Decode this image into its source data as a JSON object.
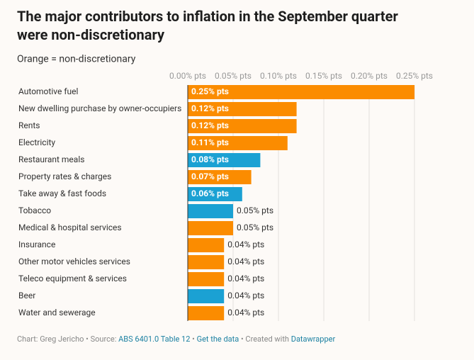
{
  "chart_data": {
    "type": "bar",
    "orientation": "horizontal",
    "title": "The major contributors to inflation in the September quarter were non-discretionary",
    "subtitle": "Orange = non-discretionary",
    "categories": [
      "Automotive fuel",
      "New dwelling purchase by owner-occupiers",
      "Rents",
      "Electricity",
      "Restaurant meals",
      "Property rates & charges",
      "Take away & fast foods",
      "Tobacco",
      "Medical & hospital services",
      "Insurance",
      "Other motor vehicles services",
      "Teleco equipment & services",
      "Beer",
      "Water and sewerage"
    ],
    "values": [
      0.25,
      0.12,
      0.12,
      0.11,
      0.08,
      0.07,
      0.06,
      0.05,
      0.05,
      0.04,
      0.04,
      0.04,
      0.04,
      0.04
    ],
    "value_labels": [
      "0.25% pts",
      "0.12% pts",
      "0.12% pts",
      "0.11% pts",
      "0.08% pts",
      "0.07% pts",
      "0.06% pts",
      "0.05% pts",
      "0.05% pts",
      "0.04% pts",
      "0.04% pts",
      "0.04% pts",
      "0.04% pts",
      "0.04% pts"
    ],
    "colors": [
      "#fb8c00",
      "#fb8c00",
      "#fb8c00",
      "#fb8c00",
      "#1ba1d3",
      "#fb8c00",
      "#1ba1d3",
      "#1ba1d3",
      "#fb8c00",
      "#fb8c00",
      "#fb8c00",
      "#fb8c00",
      "#1ba1d3",
      "#fb8c00"
    ],
    "xlim": [
      0,
      0.25
    ],
    "xticks": [
      {
        "value": 0,
        "label": "0.00% pts"
      },
      {
        "value": 0.05,
        "label": "0.05% pts"
      },
      {
        "value": 0.1,
        "label": "0.10% pts"
      },
      {
        "value": 0.15,
        "label": "0.15% pts"
      },
      {
        "value": 0.2,
        "label": "0.20% pts"
      },
      {
        "value": 0.25,
        "label": "0.25% pts"
      }
    ],
    "grid": true,
    "footer": [
      {
        "text": "Chart: Greg Jericho • Source: ",
        "link": false
      },
      {
        "text": "ABS 6401.0 Table 12",
        "link": true
      },
      {
        "text": " • ",
        "link": false
      },
      {
        "text": "Get the data",
        "link": true
      },
      {
        "text": " • Created with ",
        "link": false
      },
      {
        "text": "Datawrapper",
        "link": true
      }
    ]
  }
}
